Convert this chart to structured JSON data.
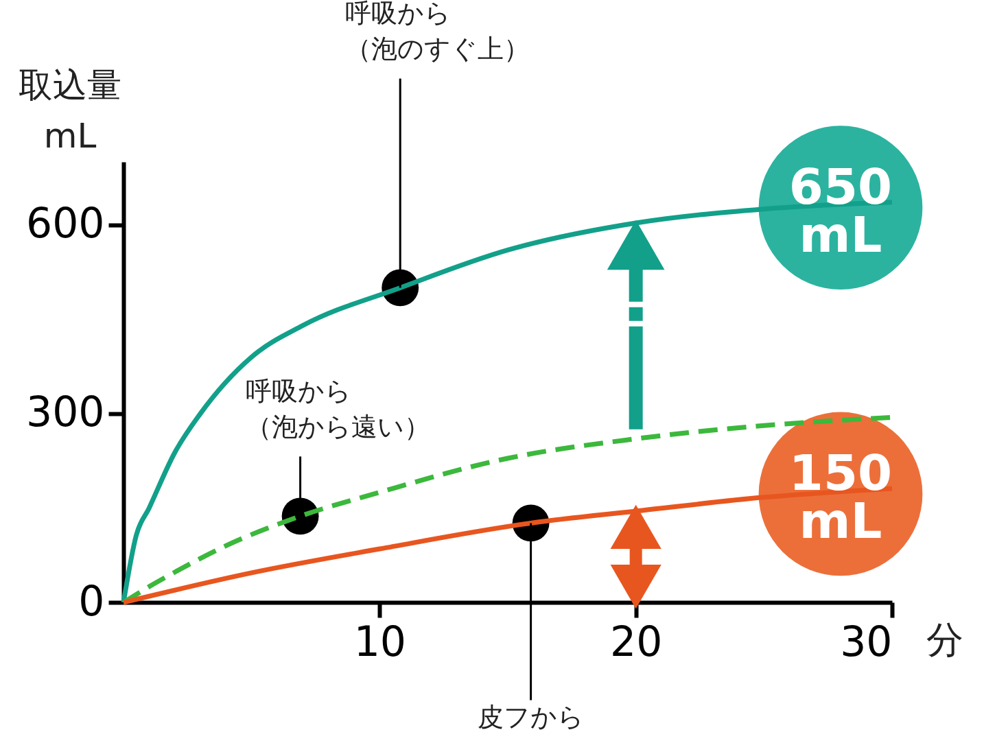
{
  "chart_data": {
    "type": "line",
    "xlabel": "分",
    "ylabel": "取込量\nmL",
    "xlim": [
      0,
      30
    ],
    "ylim": [
      0,
      700
    ],
    "xticks": [
      10,
      20,
      30
    ],
    "yticks": [
      0,
      300,
      600
    ],
    "grid": false,
    "series": [
      {
        "color": "#12a08a",
        "line_style": "solid",
        "x": [
          0,
          0.5,
          1,
          2,
          3,
          5,
          7,
          10.8,
          15,
          20,
          25,
          30
        ],
        "values": [
          0,
          107,
          150,
          238,
          300,
          390,
          440,
          500,
          560,
          603,
          625,
          636
        ]
      },
      {
        "color": "#3cb83c",
        "line_style": "dashed",
        "x": [
          0,
          1,
          2,
          4,
          6.9,
          10,
          15,
          20,
          25,
          30
        ],
        "values": [
          0,
          25,
          48,
          90,
          137,
          175,
          229,
          260,
          281,
          294
        ]
      },
      {
        "color": "#e8561f",
        "line_style": "solid",
        "x": [
          0,
          5,
          10,
          15.9,
          20,
          25,
          30
        ],
        "values": [
          0,
          47,
          85,
          126,
          145,
          167,
          181
        ]
      },
      {
        "type": "scatter",
        "color": "#000000",
        "marker": "circle",
        "x": [
          10.8,
          6.9,
          15.9
        ],
        "values": [
          500,
          137,
          126
        ]
      }
    ],
    "annotations": [
      {
        "text": "呼吸から（泡のすぐ上）",
        "x": 10.8,
        "y": 500
      },
      {
        "text": "呼吸から（泡から遠い）",
        "x": 6.9,
        "y": 137
      },
      {
        "text": "皮フから",
        "x": 15.9,
        "y": 126
      },
      "650\nmL",
      "150\nmL"
    ]
  }
}
